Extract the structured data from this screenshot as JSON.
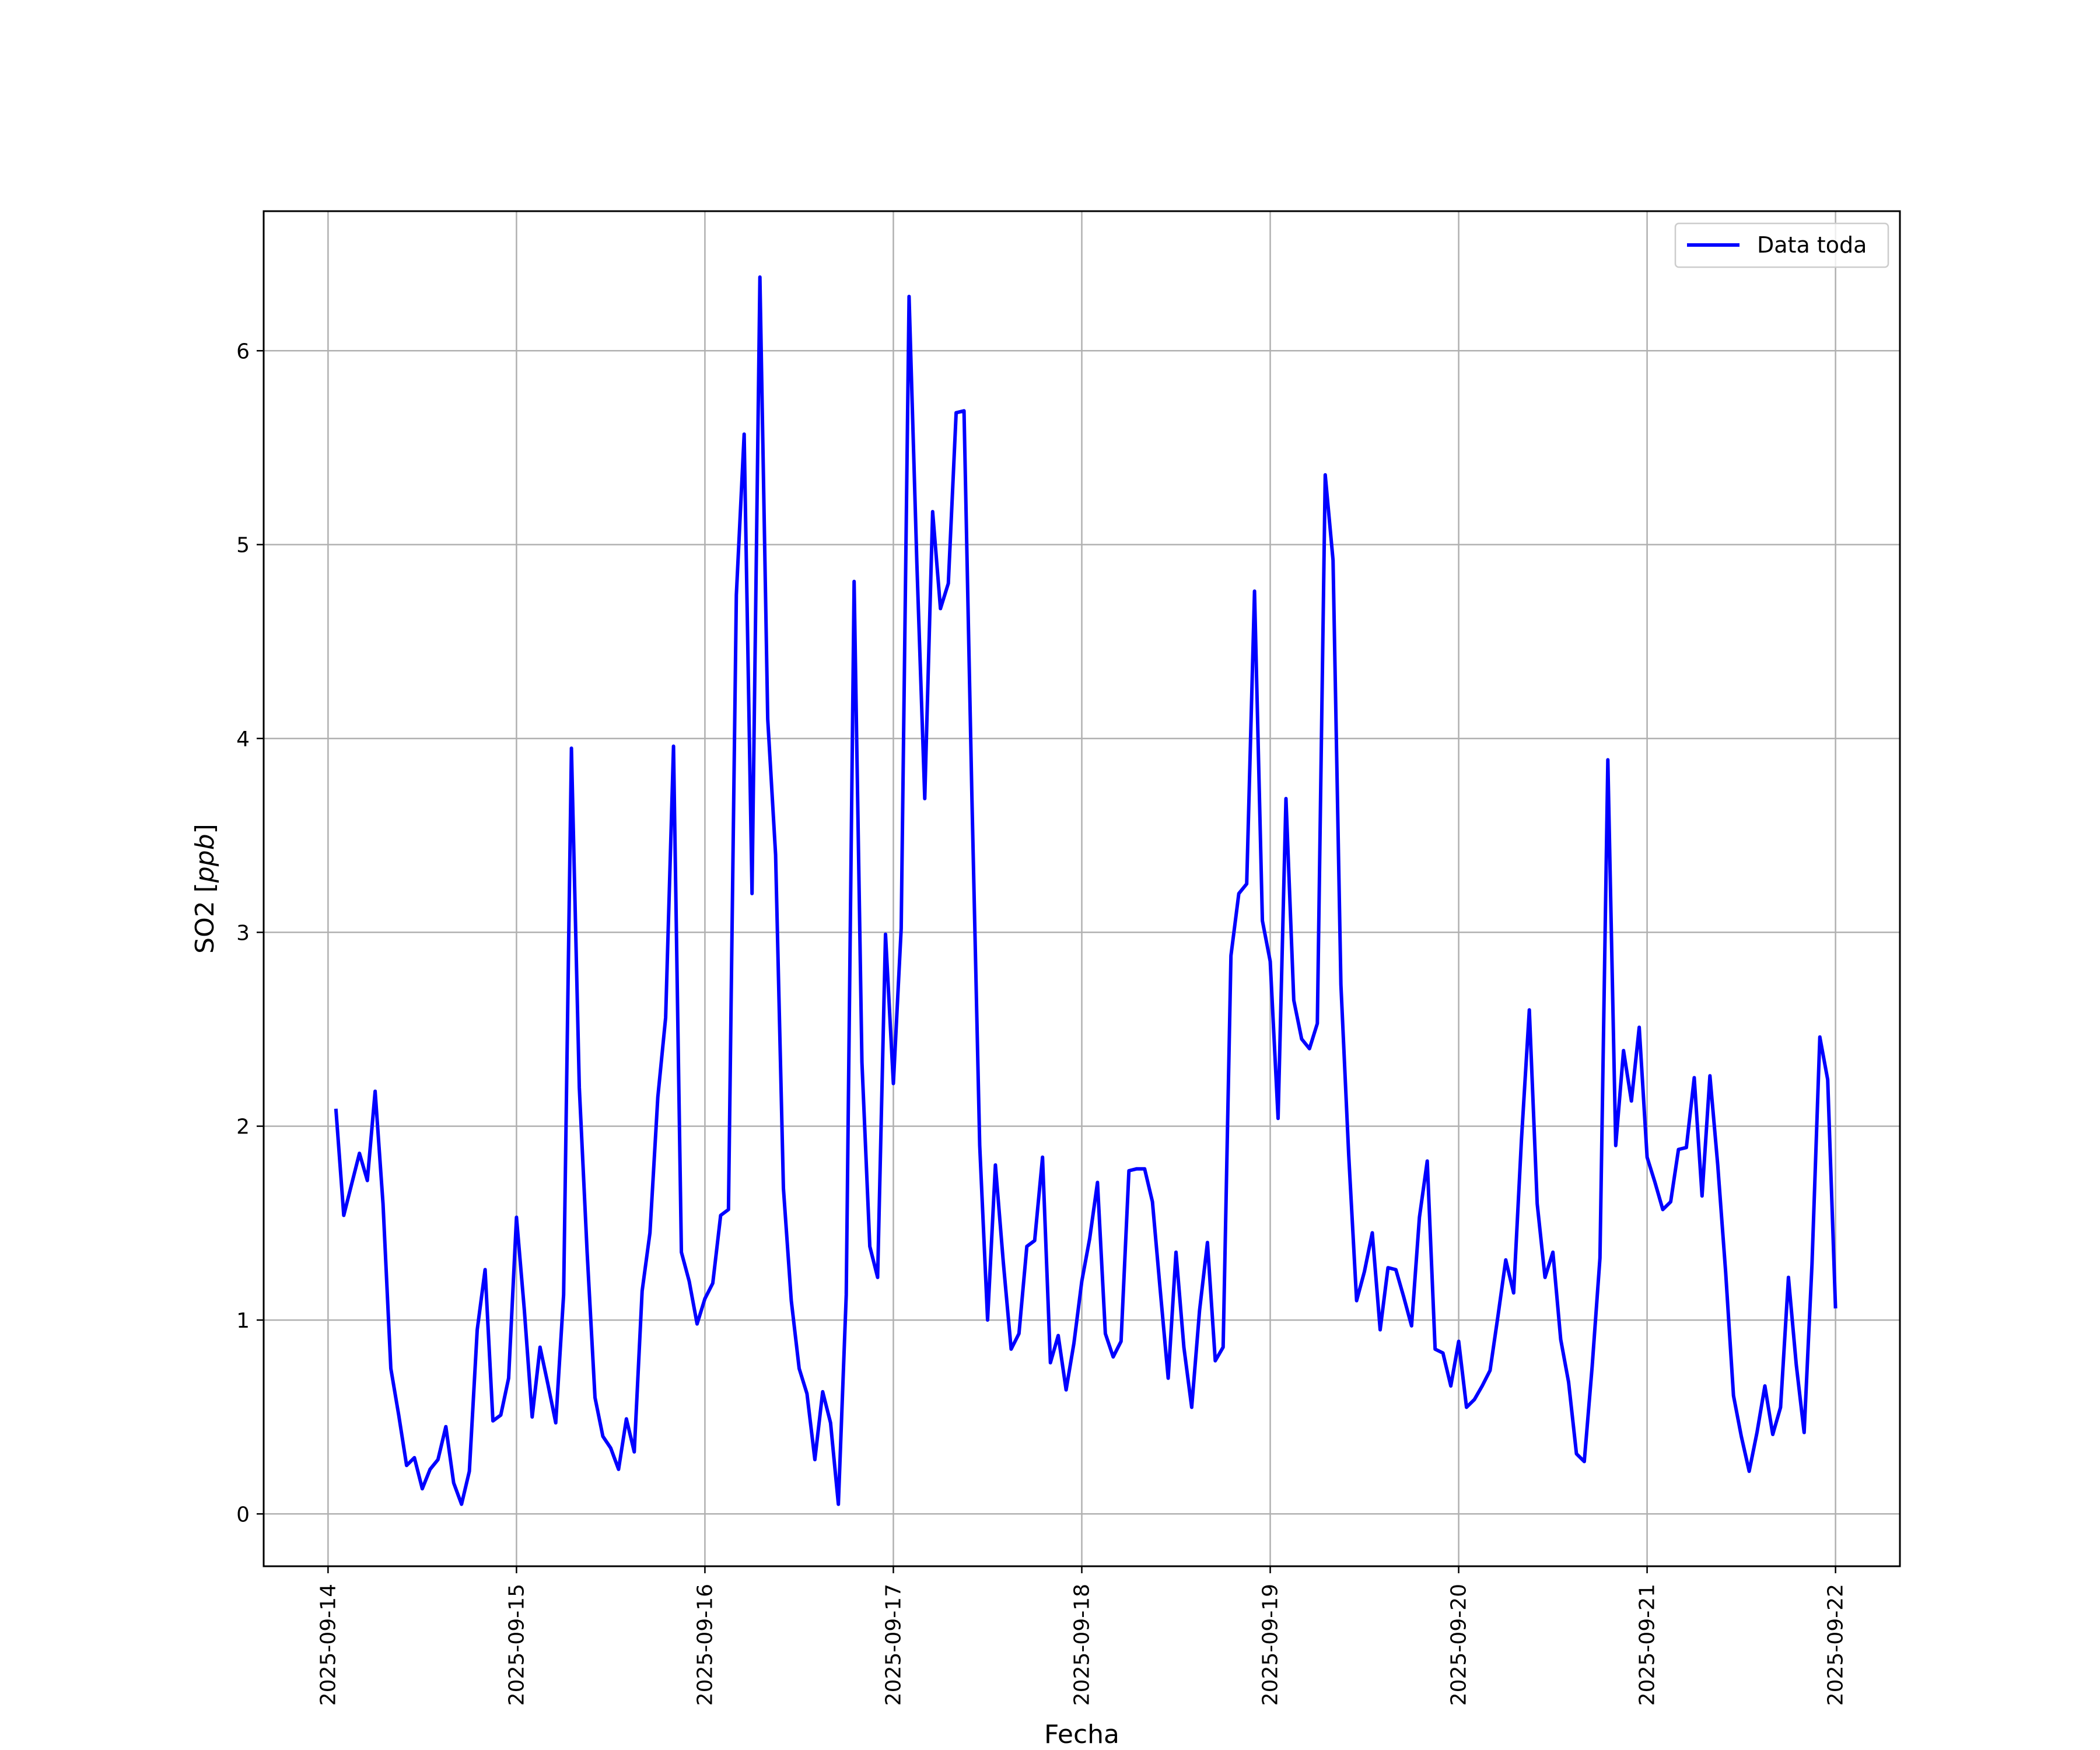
{
  "chart_data": {
    "type": "line",
    "title": "",
    "xlabel": "Fecha",
    "ylabel": "SO2 [",
    "ylabel_unit": "ppb",
    "ylabel_close": "]",
    "xlim": [
      "2025-09-13 15:48",
      "2025-09-22 08:12"
    ],
    "ylim": [
      -0.27,
      6.72
    ],
    "grid": true,
    "legend_position": "top-right",
    "x_ticks": [
      "2025-09-14",
      "2025-09-15",
      "2025-09-16",
      "2025-09-17",
      "2025-09-18",
      "2025-09-19",
      "2025-09-20",
      "2025-09-21",
      "2025-09-22"
    ],
    "y_ticks": [
      "0",
      "1",
      "2",
      "3",
      "4",
      "5",
      "6"
    ],
    "series": [
      {
        "name": "Data toda",
        "color": "#0000ff",
        "x": [
          "2025-09-14 01:00",
          "2025-09-14 02:00",
          "2025-09-14 03:00",
          "2025-09-14 04:00",
          "2025-09-14 05:00",
          "2025-09-14 06:00",
          "2025-09-14 07:00",
          "2025-09-14 08:00",
          "2025-09-14 09:00",
          "2025-09-14 10:00",
          "2025-09-14 11:00",
          "2025-09-14 12:00",
          "2025-09-14 13:00",
          "2025-09-14 14:00",
          "2025-09-14 15:00",
          "2025-09-14 16:00",
          "2025-09-14 17:00",
          "2025-09-14 18:00",
          "2025-09-14 19:00",
          "2025-09-14 20:00",
          "2025-09-14 21:00",
          "2025-09-14 22:00",
          "2025-09-14 23:00",
          "2025-09-15 00:00",
          "2025-09-15 01:00",
          "2025-09-15 02:00",
          "2025-09-15 03:00",
          "2025-09-15 04:00",
          "2025-09-15 05:00",
          "2025-09-15 06:00",
          "2025-09-15 07:00",
          "2025-09-15 08:00",
          "2025-09-15 09:00",
          "2025-09-15 10:00",
          "2025-09-15 11:00",
          "2025-09-15 12:00",
          "2025-09-15 13:00",
          "2025-09-15 14:00",
          "2025-09-15 15:00",
          "2025-09-15 16:00",
          "2025-09-15 17:00",
          "2025-09-15 18:00",
          "2025-09-15 19:00",
          "2025-09-15 20:00",
          "2025-09-15 21:00",
          "2025-09-15 22:00",
          "2025-09-15 23:00",
          "2025-09-16 00:00",
          "2025-09-16 01:00",
          "2025-09-16 02:00",
          "2025-09-16 03:00",
          "2025-09-16 04:00",
          "2025-09-16 05:00",
          "2025-09-16 06:00",
          "2025-09-16 07:00",
          "2025-09-16 08:00",
          "2025-09-16 09:00",
          "2025-09-16 10:00",
          "2025-09-16 11:00",
          "2025-09-16 12:00",
          "2025-09-16 13:00",
          "2025-09-16 14:00",
          "2025-09-16 15:00",
          "2025-09-16 16:00",
          "2025-09-16 17:00",
          "2025-09-16 18:00",
          "2025-09-16 19:00",
          "2025-09-16 20:00",
          "2025-09-16 21:00",
          "2025-09-16 22:00",
          "2025-09-16 23:00",
          "2025-09-17 00:00",
          "2025-09-17 01:00",
          "2025-09-17 02:00",
          "2025-09-17 03:00",
          "2025-09-17 04:00",
          "2025-09-17 05:00",
          "2025-09-17 06:00",
          "2025-09-17 07:00",
          "2025-09-17 08:00",
          "2025-09-17 09:00",
          "2025-09-17 10:00",
          "2025-09-17 11:00",
          "2025-09-17 12:00",
          "2025-09-17 13:00",
          "2025-09-17 14:00",
          "2025-09-17 15:00",
          "2025-09-17 16:00",
          "2025-09-17 17:00",
          "2025-09-17 18:00",
          "2025-09-17 19:00",
          "2025-09-17 20:00",
          "2025-09-17 21:00",
          "2025-09-17 22:00",
          "2025-09-17 23:00",
          "2025-09-18 00:00",
          "2025-09-18 01:00",
          "2025-09-18 02:00",
          "2025-09-18 03:00",
          "2025-09-18 04:00",
          "2025-09-18 05:00",
          "2025-09-18 06:00",
          "2025-09-18 07:00",
          "2025-09-18 08:00",
          "2025-09-18 09:00",
          "2025-09-18 10:00",
          "2025-09-18 11:00",
          "2025-09-18 12:00",
          "2025-09-18 13:00",
          "2025-09-18 14:00",
          "2025-09-18 15:00",
          "2025-09-18 16:00",
          "2025-09-18 17:00",
          "2025-09-18 18:00",
          "2025-09-18 19:00",
          "2025-09-18 20:00",
          "2025-09-18 21:00",
          "2025-09-18 22:00",
          "2025-09-18 23:00",
          "2025-09-19 00:00",
          "2025-09-19 01:00",
          "2025-09-19 02:00",
          "2025-09-19 03:00",
          "2025-09-19 04:00",
          "2025-09-19 05:00",
          "2025-09-19 06:00",
          "2025-09-19 07:00",
          "2025-09-19 08:00",
          "2025-09-19 09:00",
          "2025-09-19 10:00",
          "2025-09-19 11:00",
          "2025-09-19 12:00",
          "2025-09-19 13:00",
          "2025-09-19 14:00",
          "2025-09-19 15:00",
          "2025-09-19 16:00",
          "2025-09-19 17:00",
          "2025-09-19 18:00",
          "2025-09-19 19:00",
          "2025-09-19 20:00",
          "2025-09-19 21:00",
          "2025-09-19 22:00",
          "2025-09-19 23:00",
          "2025-09-20 00:00",
          "2025-09-20 01:00",
          "2025-09-20 02:00",
          "2025-09-20 03:00",
          "2025-09-20 04:00",
          "2025-09-20 05:00",
          "2025-09-20 06:00",
          "2025-09-20 07:00",
          "2025-09-20 08:00",
          "2025-09-20 09:00",
          "2025-09-20 10:00",
          "2025-09-20 11:00",
          "2025-09-20 12:00",
          "2025-09-20 13:00",
          "2025-09-20 14:00",
          "2025-09-20 15:00",
          "2025-09-20 16:00",
          "2025-09-20 17:00",
          "2025-09-20 18:00",
          "2025-09-20 19:00",
          "2025-09-20 20:00",
          "2025-09-20 21:00",
          "2025-09-20 22:00",
          "2025-09-20 23:00",
          "2025-09-21 00:00",
          "2025-09-21 01:00",
          "2025-09-21 02:00",
          "2025-09-21 03:00",
          "2025-09-21 04:00",
          "2025-09-21 05:00",
          "2025-09-21 06:00",
          "2025-09-21 07:00",
          "2025-09-21 08:00",
          "2025-09-21 09:00",
          "2025-09-21 10:00",
          "2025-09-21 11:00",
          "2025-09-21 12:00",
          "2025-09-21 13:00",
          "2025-09-21 14:00",
          "2025-09-21 15:00",
          "2025-09-21 16:00",
          "2025-09-21 17:00",
          "2025-09-21 18:00",
          "2025-09-21 19:00",
          "2025-09-21 20:00",
          "2025-09-21 21:00",
          "2025-09-21 22:00",
          "2025-09-21 23:00",
          "2025-09-22 00:00"
        ],
        "y": [
          2.09,
          1.54,
          1.7,
          1.86,
          1.72,
          2.18,
          1.6,
          0.75,
          0.51,
          0.25,
          0.29,
          0.13,
          0.23,
          0.28,
          0.45,
          0.16,
          0.05,
          0.22,
          0.95,
          1.26,
          0.48,
          0.51,
          0.7,
          1.53,
          1.05,
          0.5,
          0.86,
          0.67,
          0.47,
          1.13,
          3.95,
          2.2,
          1.35,
          0.6,
          0.4,
          0.34,
          0.23,
          0.49,
          0.32,
          1.15,
          1.45,
          2.15,
          2.56,
          3.96,
          1.35,
          1.2,
          0.98,
          1.11,
          1.19,
          1.54,
          1.57,
          4.74,
          5.57,
          3.2,
          6.38,
          4.1,
          3.4,
          1.68,
          1.1,
          0.75,
          0.62,
          0.28,
          0.63,
          0.47,
          0.05,
          1.13,
          4.81,
          2.33,
          1.38,
          1.22,
          2.99,
          2.22,
          3.02,
          6.28,
          4.9,
          3.69,
          5.17,
          4.67,
          4.8,
          5.68,
          5.69,
          3.7,
          1.9,
          1.0,
          1.8,
          1.3,
          0.85,
          0.93,
          1.38,
          1.41,
          1.84,
          0.78,
          0.92,
          0.64,
          0.88,
          1.2,
          1.42,
          1.71,
          0.93,
          0.81,
          0.89,
          1.77,
          1.78,
          1.78,
          1.61,
          1.15,
          0.7,
          1.35,
          0.86,
          0.55,
          1.05,
          1.4,
          0.79,
          0.86,
          2.88,
          3.2,
          3.25,
          4.76,
          3.06,
          2.85,
          2.04,
          3.69,
          2.65,
          2.45,
          2.4,
          2.53,
          5.36,
          4.92,
          2.73,
          1.85,
          1.1,
          1.25,
          1.45,
          0.95,
          1.27,
          1.26,
          1.12,
          0.97,
          1.53,
          1.82,
          0.85,
          0.83,
          0.66,
          0.89,
          0.55,
          0.59,
          0.66,
          0.74,
          1.02,
          1.31,
          1.14,
          1.93,
          2.6,
          1.6,
          1.22,
          1.35,
          0.9,
          0.68,
          0.31,
          0.27,
          0.76,
          1.32,
          3.89,
          1.9,
          2.39,
          2.13,
          2.51,
          1.84,
          1.71,
          1.57,
          1.61,
          1.88,
          1.89,
          2.25,
          1.64,
          2.26,
          1.8,
          1.25,
          0.61,
          0.4,
          0.22,
          0.42,
          0.66,
          0.41,
          0.55,
          1.22,
          0.77,
          0.42,
          1.29,
          2.46,
          2.24,
          1.06
        ]
      }
    ]
  }
}
